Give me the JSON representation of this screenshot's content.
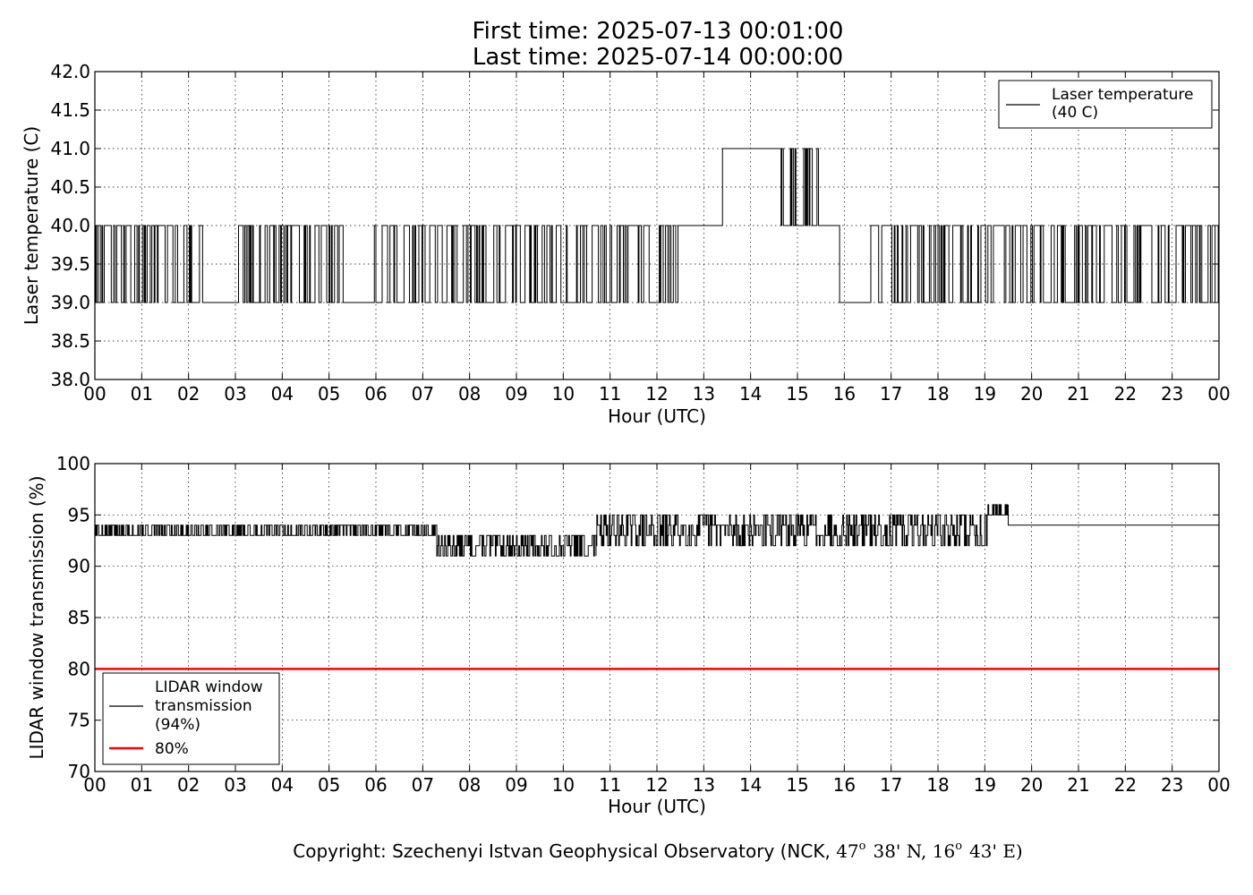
{
  "figure": {
    "title_line1": "First time: 2025-07-13 00:01:00",
    "title_line2": "Last time: 2025-07-14 00:00:00",
    "copyright_prefix": "Copyright: Szechenyi Istvan Geophysical Observatory (NCK, ",
    "lat_deg": "47",
    "lat_rest": "38' N, ",
    "lon_deg": "16",
    "lon_rest": "43' E)",
    "degree_symbol": "o"
  },
  "chart_data": [
    {
      "type": "line",
      "xlabel": "Hour (UTC)",
      "ylabel": "Laser temperature (C)",
      "xlim": [
        0,
        24
      ],
      "ylim": [
        38.0,
        42.0
      ],
      "xticks": [
        "00",
        "01",
        "02",
        "03",
        "04",
        "05",
        "06",
        "07",
        "08",
        "09",
        "10",
        "11",
        "12",
        "13",
        "14",
        "15",
        "16",
        "17",
        "18",
        "19",
        "20",
        "21",
        "22",
        "23",
        "00"
      ],
      "yticks": [
        "38.0",
        "38.5",
        "39.0",
        "39.5",
        "40.0",
        "40.5",
        "41.0",
        "41.5",
        "42.0"
      ],
      "grid": true,
      "legend_position": "top-right",
      "series": [
        {
          "name": "Laser temperature\n(40 C)",
          "legend_lines": [
            "Laser temperature",
            "(40 C)"
          ],
          "color": "#000000",
          "segments": [
            {
              "x0": 0.0,
              "x1": 2.35,
              "mode": "toggle",
              "lo": 39.0,
              "hi": 40.0,
              "seed": 11
            },
            {
              "x0": 2.35,
              "x1": 3.05,
              "mode": "flat",
              "y": 39.0
            },
            {
              "x0": 3.05,
              "x1": 4.45,
              "mode": "toggle",
              "lo": 39.0,
              "hi": 40.0,
              "seed": 23
            },
            {
              "x0": 4.45,
              "x1": 5.4,
              "mode": "toggle",
              "lo": 39.0,
              "hi": 40.0,
              "seed": 31
            },
            {
              "x0": 5.4,
              "x1": 5.95,
              "mode": "flat",
              "y": 39.0
            },
            {
              "x0": 5.95,
              "x1": 12.45,
              "mode": "toggle",
              "lo": 39.0,
              "hi": 40.0,
              "seed": 47
            },
            {
              "x0": 12.45,
              "x1": 13.4,
              "mode": "flat",
              "y": 40.0
            },
            {
              "x0": 13.4,
              "x1": 14.65,
              "mode": "flat",
              "y": 41.0
            },
            {
              "x0": 14.65,
              "x1": 15.55,
              "mode": "toggle",
              "lo": 40.0,
              "hi": 41.0,
              "seed": 59
            },
            {
              "x0": 15.55,
              "x1": 15.9,
              "mode": "flat",
              "y": 40.0
            },
            {
              "x0": 15.9,
              "x1": 16.55,
              "mode": "flat",
              "y": 39.0
            },
            {
              "x0": 16.55,
              "x1": 24.0,
              "mode": "toggle",
              "lo": 39.0,
              "hi": 40.0,
              "seed": 71
            }
          ]
        }
      ]
    },
    {
      "type": "line",
      "xlabel": "Hour (UTC)",
      "ylabel": "LIDAR window transmission (%)",
      "xlim": [
        0,
        24
      ],
      "ylim": [
        70,
        100
      ],
      "xticks": [
        "00",
        "01",
        "02",
        "03",
        "04",
        "05",
        "06",
        "07",
        "08",
        "09",
        "10",
        "11",
        "12",
        "13",
        "14",
        "15",
        "16",
        "17",
        "18",
        "19",
        "20",
        "21",
        "22",
        "23",
        "00"
      ],
      "yticks": [
        "70",
        "75",
        "80",
        "85",
        "90",
        "95",
        "100"
      ],
      "grid": true,
      "legend_position": "bottom-left",
      "series": [
        {
          "name": "LIDAR window\ntransmission\n(94%)",
          "legend_lines": [
            "LIDAR window",
            "transmission",
            "(94%)"
          ],
          "color": "#000000",
          "segments": [
            {
              "x0": 0.0,
              "x1": 7.3,
              "mode": "noise",
              "lo": 93,
              "hi": 94,
              "seed": 5
            },
            {
              "x0": 7.3,
              "x1": 10.7,
              "mode": "noise",
              "lo": 91,
              "hi": 93,
              "seed": 13
            },
            {
              "x0": 10.7,
              "x1": 19.05,
              "mode": "noise",
              "lo": 92,
              "hi": 95,
              "seed": 29
            },
            {
              "x0": 19.05,
              "x1": 19.5,
              "mode": "noise",
              "lo": 95,
              "hi": 96,
              "seed": 37
            },
            {
              "x0": 19.5,
              "x1": 24.0,
              "mode": "flat",
              "y": 94
            }
          ]
        },
        {
          "name": "80%",
          "legend_lines": [
            "80%"
          ],
          "color": "#ff0000",
          "segments": [
            {
              "x0": 0.0,
              "x1": 24.0,
              "mode": "flat",
              "y": 80
            }
          ]
        }
      ]
    }
  ]
}
